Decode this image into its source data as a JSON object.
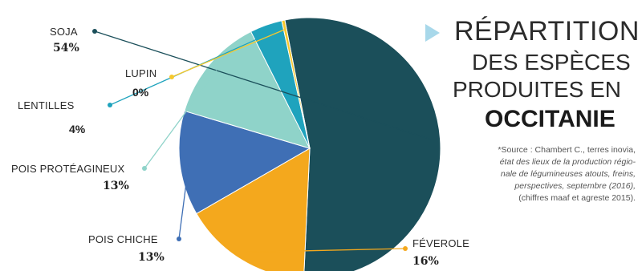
{
  "title": {
    "line1": "RÉPARTITION",
    "line2": "DES ESPÈCES",
    "line3": "PRODUITES EN",
    "line4": "OCCITANIE"
  },
  "source_lines": [
    {
      "text": "*Source : Chambert C., terres inovia,",
      "italic": false
    },
    {
      "text": "état des lieux de la production régio-",
      "italic": true
    },
    {
      "text": "nale de légumineuses atouts, freins,",
      "italic": true
    },
    {
      "text": "perspectives, septembre (2016),",
      "italic": true
    },
    {
      "text": "(chiffres maaf et agreste 2015).",
      "italic": false
    }
  ],
  "chart_data": {
    "type": "pie",
    "unit": "%",
    "slices": [
      {
        "name": "SOJA",
        "value": 54,
        "label": "54%",
        "color": "#1b4f5a"
      },
      {
        "name": "FÉVEROLE",
        "value": 16,
        "label": "16%",
        "color": "#f4a81d"
      },
      {
        "name": "POIS CHICHE",
        "value": 13,
        "label": "13%",
        "color": "#3f6fb5"
      },
      {
        "name": "POIS PROTÉAGINEUX",
        "value": 13,
        "label": "13%",
        "color": "#8fd3c9"
      },
      {
        "name": "LENTILLES",
        "value": 4,
        "label": "4%",
        "color": "#1fa3bd"
      },
      {
        "name": "LUPIN",
        "value": 0,
        "label": "0%",
        "color": "#f6c82c"
      }
    ]
  }
}
